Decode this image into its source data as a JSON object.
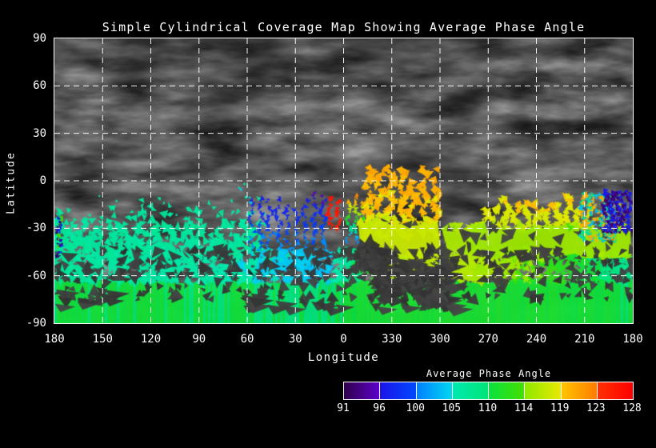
{
  "title": "Simple Cylindrical Coverage Map Showing Average Phase Angle",
  "colors": {
    "background": "#000000",
    "text": "#ffffff",
    "grid": "#ffffff",
    "frame": "#ffffff",
    "no_data_gap": "#3c3c3c"
  },
  "axes": {
    "x": {
      "label": "Longitude",
      "ticks": [
        "180",
        "150",
        "120",
        "90",
        "60",
        "30",
        "0",
        "330",
        "300",
        "270",
        "240",
        "210",
        "180"
      ]
    },
    "y": {
      "label": "Latitude",
      "ticks": [
        "90",
        "60",
        "30",
        "0",
        "-30",
        "-60",
        "-90"
      ]
    }
  },
  "colorbar": {
    "title": "Average Phase Angle",
    "tick_labels": [
      "91",
      "96",
      "100",
      "105",
      "110",
      "114",
      "119",
      "123",
      "128"
    ],
    "segments": [
      [
        "#30004a",
        "#5c00c8"
      ],
      [
        "#1c14e8",
        "#0048ff"
      ],
      [
        "#0080ff",
        "#00d8f0"
      ],
      [
        "#00e8b0",
        "#00e478"
      ],
      [
        "#0ae040",
        "#44df00"
      ],
      [
        "#90e800",
        "#e8e800"
      ],
      [
        "#ffc400",
        "#ff7c00"
      ],
      [
        "#ff3000",
        "#ff0000"
      ]
    ]
  },
  "chart_data": {
    "type": "coverage_map",
    "projection": "simple cylindrical",
    "background": "grayscale planetary surface texture",
    "value_label": "Average Phase Angle",
    "value_range": [
      91,
      128
    ],
    "lon_axis_deg": [
      180,
      150,
      120,
      90,
      60,
      30,
      0,
      330,
      300,
      270,
      240,
      210,
      180
    ],
    "lat_axis_deg": [
      90,
      60,
      30,
      0,
      -30,
      -60,
      -90
    ],
    "regions": [
      {
        "name": "south-polar-solid-band",
        "style": "band",
        "lon": "all",
        "lat": [
          -63,
          -90
        ],
        "phase_stops": [
          [
            0,
            110.4
          ],
          [
            0.3,
            110.2
          ],
          [
            0.45,
            109.6
          ],
          [
            0.55,
            110.8
          ],
          [
            0.72,
            111.0
          ],
          [
            1,
            110.4
          ]
        ]
      },
      {
        "name": "subpolar-dense-band",
        "style": "dense",
        "lon": "all",
        "lat": [
          -44,
          -64
        ],
        "density": 0.95,
        "phase_stops": [
          [
            0,
            107.0
          ],
          [
            0.28,
            105.8
          ],
          [
            0.4,
            104.5
          ],
          [
            0.48,
            103.8
          ],
          [
            0.54,
            112.0
          ],
          [
            0.6,
            116.3
          ],
          [
            0.7,
            116.0
          ],
          [
            0.8,
            114.5
          ],
          [
            0.88,
            112.0
          ],
          [
            1,
            107.8
          ]
        ]
      },
      {
        "name": "left-teal-scatter",
        "style": "scatter",
        "lon": [
          49,
          180
        ],
        "lat": [
          -8,
          -45
        ],
        "count": 340,
        "phase": 106.6,
        "size": [
          3,
          8
        ]
      },
      {
        "name": "left-edge-violet-specks",
        "style": "specks",
        "lon": [
          175,
          180
        ],
        "lat": [
          -22,
          -50
        ],
        "count": 50,
        "phases": [
          92.5,
          97,
          113.5
        ],
        "size": [
          2,
          3.5
        ]
      },
      {
        "name": "blue-violet-columns",
        "style": "columns",
        "lon": [
          10,
          60
        ],
        "lat": [
          -6,
          -44
        ],
        "spacing": 11,
        "width": 5,
        "size": [
          2,
          4.5
        ],
        "phase_v": [
          95.5,
          101
        ]
      },
      {
        "name": "red-columns-east-of-zero",
        "style": "columns",
        "lon": [
          1,
          11
        ],
        "lat": [
          -5,
          -32
        ],
        "spacing": 10,
        "width": 5,
        "size": [
          2.5,
          5
        ],
        "phase_v": [
          126.5,
          125
        ]
      },
      {
        "name": "red-to-cyan-fringe",
        "style": "columns",
        "lon": [
          341,
          359
        ],
        "lat": [
          -4,
          -40
        ],
        "spacing": 9,
        "width": 5,
        "size": [
          2,
          4.5
        ],
        "phase_v": [
          126.5,
          100
        ]
      },
      {
        "name": "orange-columns",
        "style": "columns",
        "lon": [
          299,
          348
        ],
        "lat": [
          9,
          -36
        ],
        "spacing": 14,
        "width": 9,
        "size": [
          4,
          7
        ],
        "phase_v": [
          120.5,
          118.5
        ]
      },
      {
        "name": "central-yellow-mass",
        "style": "solid",
        "lon": [
          299,
          351
        ],
        "lat": [
          -26,
          -49
        ],
        "phase": 117.2,
        "gap_density": 0.5
      },
      {
        "name": "bridge-yellow-mass",
        "style": "solid",
        "lon": [
          275,
          299
        ],
        "lat": [
          -30,
          -47
        ],
        "phase": 115.5,
        "gap_density": 0.6
      },
      {
        "name": "right-yellow-columns",
        "style": "columns",
        "lon": [
          204,
          275
        ],
        "lat": [
          -7,
          -31
        ],
        "spacing": 13,
        "width": 8,
        "size": [
          3.5,
          6.5
        ],
        "phase_v": [
          119.8,
          117.5
        ]
      },
      {
        "name": "right-yellowgreen-mass",
        "style": "solid",
        "lon": [
          181,
          281
        ],
        "lat": [
          -29,
          -47
        ],
        "phase": 114.8,
        "gap_density": 0.7
      },
      {
        "name": "right-cyan-orange-specks",
        "style": "specks",
        "lon": [
          189,
          213
        ],
        "lat": [
          -8,
          -38
        ],
        "count": 300,
        "phases": [
          103.5,
          120.5,
          108
        ],
        "size": [
          2,
          4
        ]
      },
      {
        "name": "right-violet-specks",
        "style": "specks",
        "lon": [
          181,
          199
        ],
        "lat": [
          -6,
          -32
        ],
        "count": 260,
        "phases": [
          92.5,
          96.5
        ],
        "size": [
          2,
          4
        ]
      },
      {
        "name": "sparse-equator-specks",
        "style": "specks",
        "lon": [
          56,
          66
        ],
        "lat": [
          -1,
          -14
        ],
        "count": 7,
        "phases": [
          104.5,
          106
        ],
        "size": [
          2,
          3.5
        ]
      }
    ],
    "data_gaps": [
      {
        "name": "crater-shadow-gap",
        "lon": [
          296,
          342
        ],
        "lat": [
          -48,
          -80
        ],
        "count": 150,
        "size": [
          7,
          16
        ]
      },
      {
        "name": "crater-shadow-upper",
        "lon": [
          338,
          352
        ],
        "lat": [
          -40,
          -56
        ],
        "count": 50,
        "size": [
          6,
          12
        ]
      },
      {
        "name": "band-speckle-gaps",
        "lon": "all",
        "lat": [
          -44,
          -75
        ],
        "count": 330,
        "size": [
          4,
          10
        ]
      },
      {
        "name": "southwest-wedges",
        "lon": [
          148,
          180
        ],
        "lat": [
          -68,
          -78
        ],
        "count": 18,
        "size": [
          6,
          14
        ]
      },
      {
        "name": "south-central-wedges",
        "lon": [
          4,
          64
        ],
        "lat": [
          -70,
          -80
        ],
        "count": 22,
        "size": [
          6,
          16
        ]
      }
    ]
  }
}
